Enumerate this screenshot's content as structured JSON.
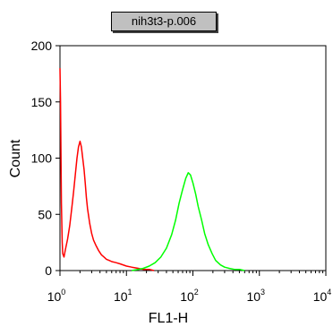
{
  "chart_data": {
    "type": "line",
    "title": "nih3t3-p.006",
    "xlabel": "FL1-H",
    "ylabel": "Count",
    "x_scale": "log",
    "xlim": [
      1,
      10000
    ],
    "ylim": [
      0,
      200
    ],
    "x_ticks": [
      {
        "value": 1,
        "base": "10",
        "exp": "0"
      },
      {
        "value": 10,
        "base": "10",
        "exp": "1"
      },
      {
        "value": 100,
        "base": "10",
        "exp": "2"
      },
      {
        "value": 1000,
        "base": "10",
        "exp": "3"
      },
      {
        "value": 10000,
        "base": "10",
        "exp": "4"
      }
    ],
    "y_ticks": [
      {
        "value": 0,
        "label": "0"
      },
      {
        "value": 50,
        "label": "50"
      },
      {
        "value": 100,
        "label": "100"
      },
      {
        "value": 150,
        "label": "150"
      },
      {
        "value": 200,
        "label": "200"
      }
    ],
    "grid": false,
    "series": [
      {
        "color": "#ff0000",
        "x": [
          1.0,
          1.02,
          1.05,
          1.08,
          1.1,
          1.15,
          1.2,
          1.3,
          1.4,
          1.5,
          1.6,
          1.7,
          1.8,
          1.9,
          2.0,
          2.1,
          2.2,
          2.3,
          2.4,
          2.5,
          2.6,
          2.8,
          3.0,
          3.2,
          3.5,
          3.8,
          4.2,
          4.6,
          5.0,
          5.5,
          6.0,
          7.0,
          8.0,
          10.0,
          12.0,
          15.0,
          18.0,
          22.0,
          26.0
        ],
        "y": [
          180,
          150,
          60,
          25,
          15,
          12,
          18,
          28,
          40,
          55,
          70,
          85,
          100,
          110,
          115,
          110,
          100,
          90,
          78,
          65,
          55,
          42,
          33,
          27,
          22,
          18,
          14,
          12,
          10,
          9,
          8,
          7,
          6,
          4,
          3,
          2,
          1,
          1,
          0
        ]
      },
      {
        "color": "#00ff00",
        "x": [
          12,
          15,
          18,
          22,
          27,
          33,
          40,
          48,
          55,
          62,
          70,
          78,
          85,
          92,
          100,
          110,
          120,
          135,
          150,
          170,
          195,
          220,
          260,
          300,
          350,
          420,
          500,
          600
        ],
        "y": [
          0,
          1,
          2,
          4,
          7,
          12,
          20,
          32,
          45,
          60,
          72,
          82,
          87,
          85,
          78,
          68,
          57,
          45,
          33,
          23,
          15,
          9,
          5,
          3,
          2,
          1,
          1,
          0
        ]
      }
    ]
  }
}
